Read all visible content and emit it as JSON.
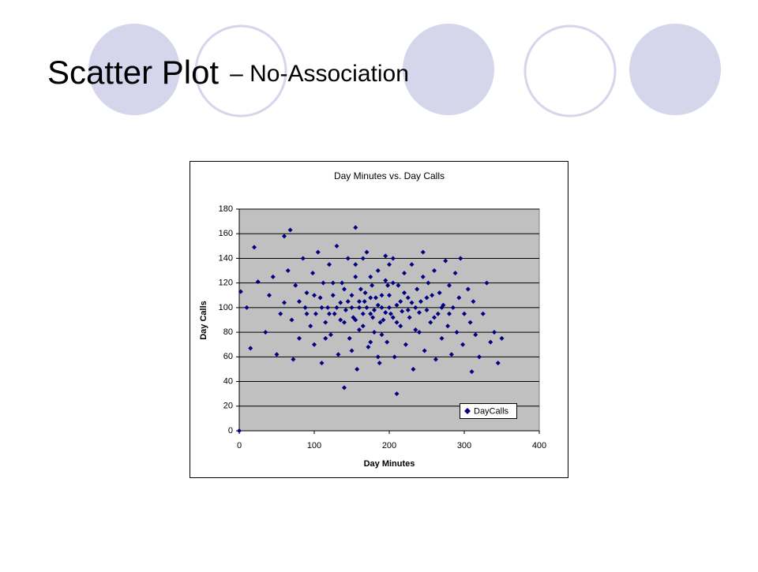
{
  "slide": {
    "title": "Scatter Plot",
    "subtitle": "– No-Association"
  },
  "chart_data": {
    "type": "scatter",
    "title": "Day Minutes vs. Day Calls",
    "x_label": "Day Minutes",
    "y_label": "Day Calls",
    "xlim": [
      0,
      400
    ],
    "xticks": [
      0,
      100,
      200,
      300,
      400
    ],
    "ylim": [
      0,
      180
    ],
    "yticks": [
      0,
      20,
      40,
      60,
      80,
      100,
      120,
      140,
      160,
      180
    ],
    "grid": true,
    "legend": "lower right",
    "series": [
      {
        "name": "DayCalls",
        "color": "#000080",
        "x": [
          0,
          2,
          10,
          15,
          20,
          68,
          155,
          210,
          345,
          350,
          330,
          310,
          140,
          60,
          25,
          35,
          40,
          45,
          50,
          55,
          60,
          65,
          70,
          72,
          75,
          80,
          85,
          88,
          90,
          95,
          98,
          100,
          102,
          105,
          108,
          110,
          112,
          115,
          118,
          120,
          122,
          125,
          127,
          130,
          132,
          135,
          137,
          140,
          142,
          145,
          147,
          150,
          152,
          155,
          157,
          160,
          162,
          165,
          167,
          170,
          172,
          175,
          177,
          180,
          182,
          185,
          187,
          190,
          192,
          195,
          197,
          200,
          202,
          205,
          207,
          210,
          212,
          215,
          217,
          220,
          222,
          225,
          227,
          230,
          232,
          235,
          237,
          240,
          242,
          245,
          247,
          250,
          252,
          255,
          257,
          260,
          262,
          265,
          267,
          270,
          272,
          275,
          278,
          280,
          283,
          285,
          288,
          290,
          293,
          295,
          298,
          300,
          305,
          308,
          312,
          315,
          320,
          325,
          335,
          340,
          150,
          160,
          165,
          170,
          175,
          180,
          185,
          190,
          195,
          200,
          155,
          168,
          178,
          188,
          198,
          145,
          135,
          205,
          215,
          225,
          140,
          160,
          175,
          190,
          210,
          220,
          130,
          120,
          230,
          240,
          110,
          100,
          250,
          260,
          90,
          270,
          280,
          80,
          165,
          185,
          150,
          200,
          125,
          235,
          245,
          115,
          205,
          175,
          195,
          155
        ],
        "y": [
          0,
          113,
          100,
          67,
          149,
          163,
          165,
          30,
          55,
          75,
          120,
          48,
          35,
          158,
          121,
          80,
          110,
          125,
          62,
          95,
          104,
          130,
          90,
          58,
          118,
          75,
          140,
          100,
          112,
          85,
          128,
          70,
          95,
          145,
          108,
          55,
          120,
          88,
          100,
          135,
          78,
          110,
          95,
          150,
          62,
          104,
          120,
          88,
          98,
          140,
          75,
          110,
          92,
          125,
          50,
          100,
          115,
          85,
          105,
          145,
          68,
          95,
          118,
          80,
          108,
          130,
          55,
          100,
          90,
          122,
          72,
          110,
          95,
          140,
          60,
          102,
          118,
          85,
          97,
          128,
          70,
          108,
          92,
          135,
          50,
          100,
          115,
          80,
          105,
          145,
          65,
          98,
          120,
          88,
          110,
          130,
          58,
          95,
          112,
          75,
          102,
          138,
          85,
          118,
          62,
          100,
          128,
          80,
          108,
          140,
          70,
          95,
          115,
          88,
          105,
          78,
          60,
          95,
          72,
          80,
          100,
          105,
          95,
          100,
          108,
          98,
          102,
          110,
          96,
          100,
          90,
          112,
          92,
          88,
          118,
          105,
          90,
          92,
          105,
          98,
          115,
          82,
          125,
          78,
          88,
          112,
          100,
          95,
          104,
          96,
          100,
          110,
          108,
          92,
          95,
          100,
          95,
          105,
          140,
          60,
          65,
          135,
          120,
          82,
          125,
          75,
          120,
          72,
          142,
          135
        ]
      }
    ]
  }
}
